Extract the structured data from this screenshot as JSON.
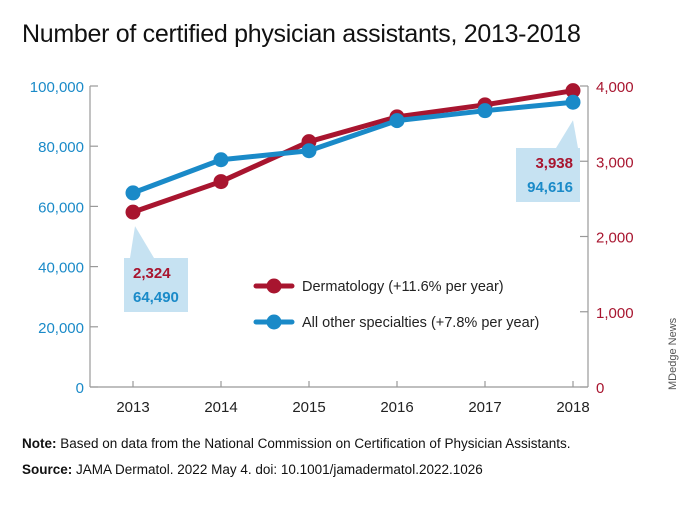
{
  "title": "Number of certified physician assistants, 2013-2018",
  "note_label": "Note:",
  "note_text": " Based on data from the National Commission on Certification of Physician Assistants.",
  "source_label": "Source:",
  "source_text": " JAMA Dermatol. 2022 May 4. doi: 10.1001/jamadermatol.2022.1026",
  "credit": "MDedge News",
  "chart_data": {
    "type": "line",
    "title": "Number of certified physician assistants, 2013-2018",
    "categories": [
      "2013",
      "2014",
      "2015",
      "2016",
      "2017",
      "2018"
    ],
    "y_left": {
      "ylim": [
        0,
        100000
      ],
      "ticks": [
        "0",
        "20,000",
        "40,000",
        "60,000",
        "80,000",
        "100,000"
      ],
      "tick_values": [
        0,
        20000,
        40000,
        60000,
        80000,
        100000
      ],
      "color": "#1a8ac8"
    },
    "y_right": {
      "ylim": [
        0,
        4000
      ],
      "ticks": [
        "0",
        "1,000",
        "2,000",
        "3,000",
        "4,000"
      ],
      "tick_values": [
        0,
        1000,
        2000,
        3000,
        4000
      ],
      "color": "#a8152f"
    },
    "series": [
      {
        "name": "Dermatology (+11.6% per year)",
        "axis": "right",
        "color": "#a8152f",
        "values": [
          2324,
          2730,
          3260,
          3590,
          3750,
          3938
        ]
      },
      {
        "name": "All other specialties (+7.8% per year)",
        "axis": "left",
        "color": "#1a8ac8",
        "values": [
          64490,
          75500,
          78500,
          88500,
          91800,
          94616
        ]
      }
    ],
    "callouts": [
      {
        "category": "2013",
        "derm_label": "2,324",
        "other_label": "64,490"
      },
      {
        "category": "2018",
        "derm_label": "3,938",
        "other_label": "94,616"
      }
    ],
    "legend_placement": "center-right",
    "grid": false
  }
}
